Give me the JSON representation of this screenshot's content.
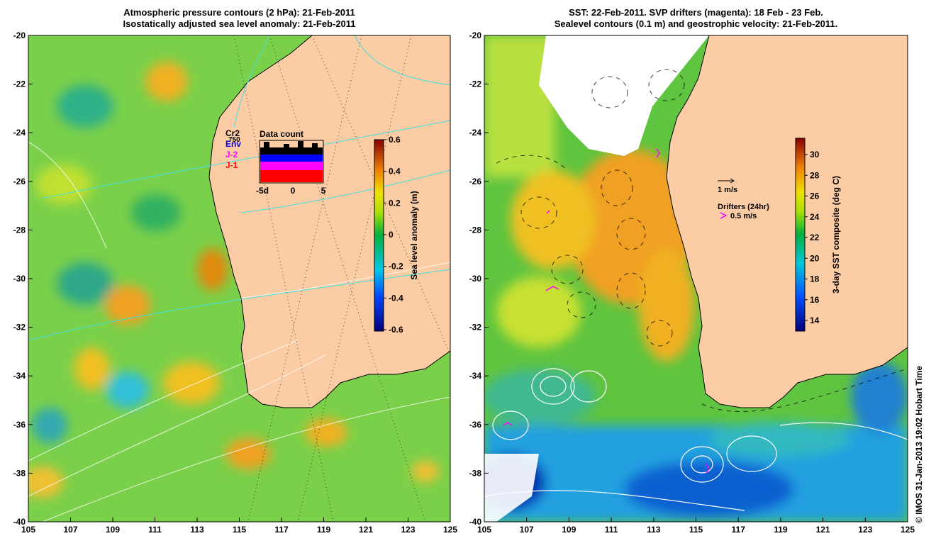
{
  "left_panel": {
    "title_line1": "Atmospheric pressure contours (2 hPa): 21-Feb-2011",
    "title_line2": "Isostatically adjusted sea level anomaly: 21-Feb-2011",
    "colorbar": {
      "label": "Sea level anomaly (m)",
      "ticks": [
        "0.6",
        "0.4",
        "0.2",
        "0",
        "-0.2",
        "-0.4",
        "-0.6"
      ]
    },
    "data_count": {
      "title": "Data count",
      "series": [
        {
          "name": "Cr2",
          "color": "#000000"
        },
        {
          "name": "Env",
          "color": "#0000ff"
        },
        {
          "name": "J-2",
          "color": "#ff00ff"
        },
        {
          "name": "J-1",
          "color": "#ff0000"
        }
      ],
      "extra_label": "750",
      "x_ticks": [
        "-5d",
        "0",
        "5"
      ]
    }
  },
  "right_panel": {
    "title_line1": "SST: 22-Feb-2011. SVP drifters (magenta): 18 Feb - 23 Feb.",
    "title_line2": "Sealevel contours (0.1 m) and geostrophic velocity: 21-Feb-2011.",
    "colorbar": {
      "label": "3-day SST composite (deg C)",
      "ticks": [
        "30",
        "28",
        "26",
        "24",
        "22",
        "20",
        "18",
        "16",
        "14"
      ]
    },
    "velocity_key": "1 m/s",
    "drifter_key_title": "Drifters (24hr)",
    "drifter_key_speed": "0.5 m/s"
  },
  "map_data": {
    "lon_ticks": [
      "105",
      "107",
      "109",
      "111",
      "113",
      "115",
      "117",
      "119",
      "121",
      "123",
      "125"
    ],
    "lat_ticks": [
      "-20",
      "-22",
      "-24",
      "-26",
      "-28",
      "-30",
      "-32",
      "-34",
      "-36",
      "-38",
      "-40"
    ],
    "lon_range": [
      105,
      125
    ],
    "lat_range": [
      -40,
      -20
    ],
    "colors": {
      "land": "#fccda4",
      "drifter": "#ff00ff",
      "contour": "#ffffff",
      "pressure": "#40e0e0"
    }
  },
  "credit": "© IMOS 31-Jan-2013 19:02 Hobart Time"
}
